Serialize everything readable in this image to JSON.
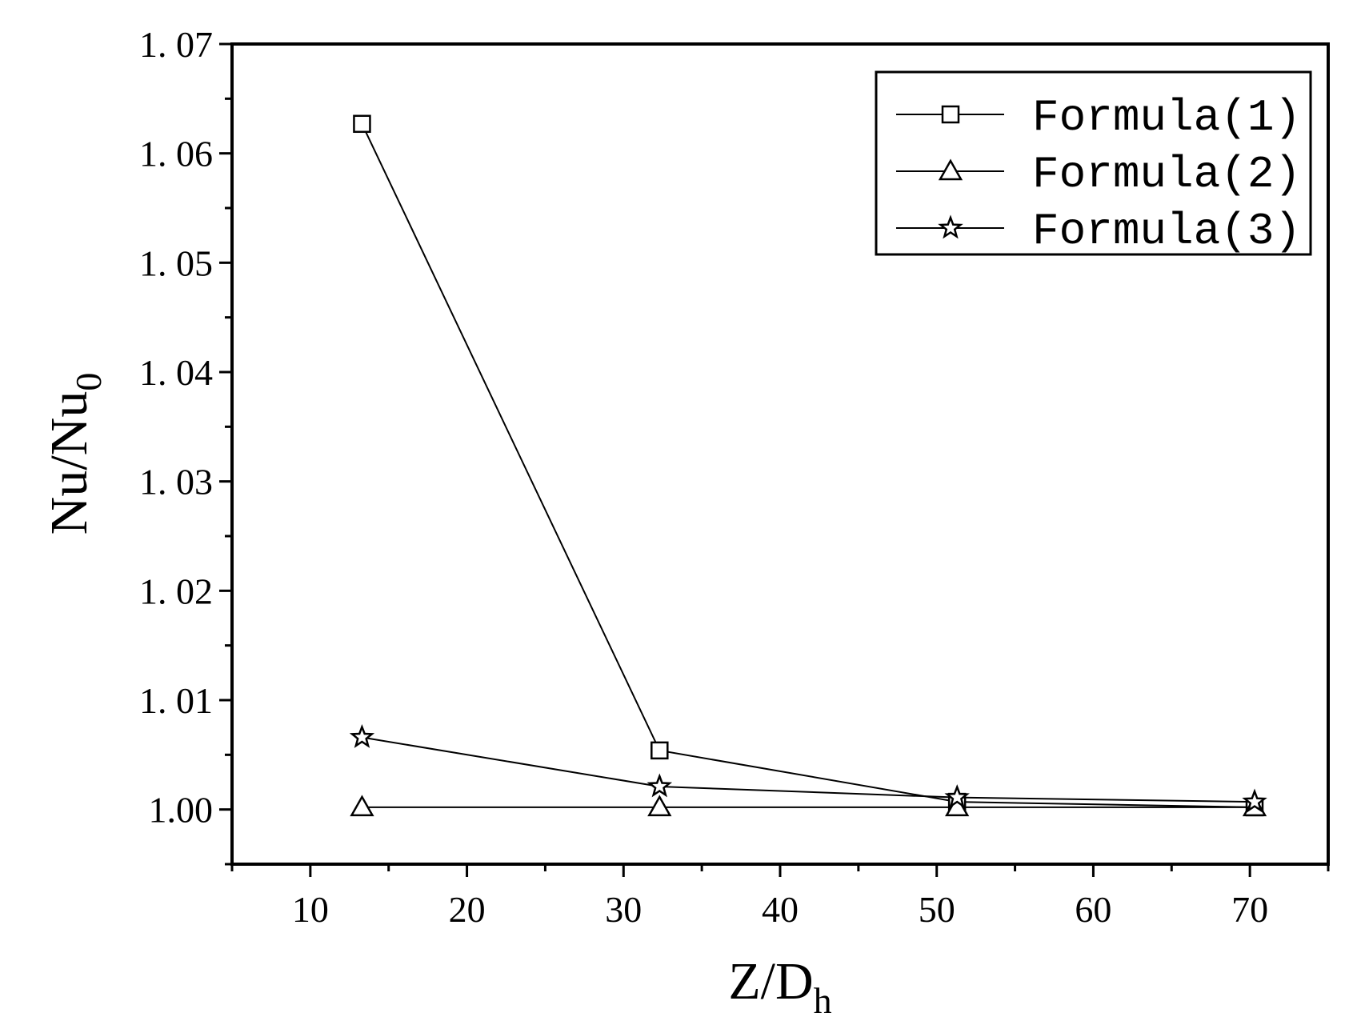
{
  "chart_data": {
    "type": "line",
    "xlabel": "Z/D",
    "xlabel_sub": "h",
    "ylabel": "Nu/Nu",
    "ylabel_sub": "0",
    "xlim": [
      5,
      75
    ],
    "ylim": [
      0.995,
      1.07
    ],
    "x_ticks": [
      10,
      20,
      30,
      40,
      50,
      60,
      70
    ],
    "x_tick_labels": [
      "10",
      "20",
      "30",
      "40",
      "50",
      "60",
      "70"
    ],
    "y_ticks": [
      1.0,
      1.01,
      1.02,
      1.03,
      1.04,
      1.05,
      1.06,
      1.07
    ],
    "y_tick_labels": [
      "1.00",
      "1. 01",
      "1. 02",
      "1. 03",
      "1. 04",
      "1. 05",
      "1. 06",
      "1. 07"
    ],
    "grid": false,
    "legend_position": "top-right",
    "series": [
      {
        "name": "Formula(1)",
        "marker": "square",
        "x": [
          13.3,
          32.3,
          51.3,
          70.3
        ],
        "y": [
          1.0627,
          1.0054,
          1.0007,
          1.0002
        ]
      },
      {
        "name": "Formula(2)",
        "marker": "triangle",
        "x": [
          13.3,
          32.3,
          51.3,
          70.3
        ],
        "y": [
          1.0002,
          1.0002,
          1.0002,
          1.0002
        ]
      },
      {
        "name": "Formula(3)",
        "marker": "star",
        "x": [
          13.3,
          32.3,
          51.3,
          70.3
        ],
        "y": [
          1.0066,
          1.0021,
          1.0011,
          1.0007
        ]
      }
    ]
  }
}
